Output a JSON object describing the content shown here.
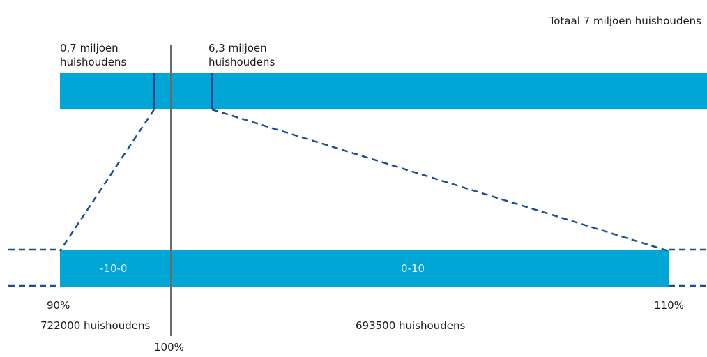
{
  "total_label": "Totaal 7 miljoen huishoudens",
  "left_group_label": "0,7 miljoen huishoudens",
  "right_group_label": "6,3 miljoen huishoudens",
  "segments": {
    "left": "-10-0",
    "right": "0-10"
  },
  "scale": {
    "left": "90%",
    "center": "100%",
    "right": "110%"
  },
  "counts": {
    "left": "722000 huishoudens",
    "right": "693500 huishoudens"
  },
  "colors": {
    "bar": "#00a6d6",
    "marker": "#1b3f8b",
    "dashed": "#1b4f91",
    "center_line": "#6b6b6b"
  }
}
